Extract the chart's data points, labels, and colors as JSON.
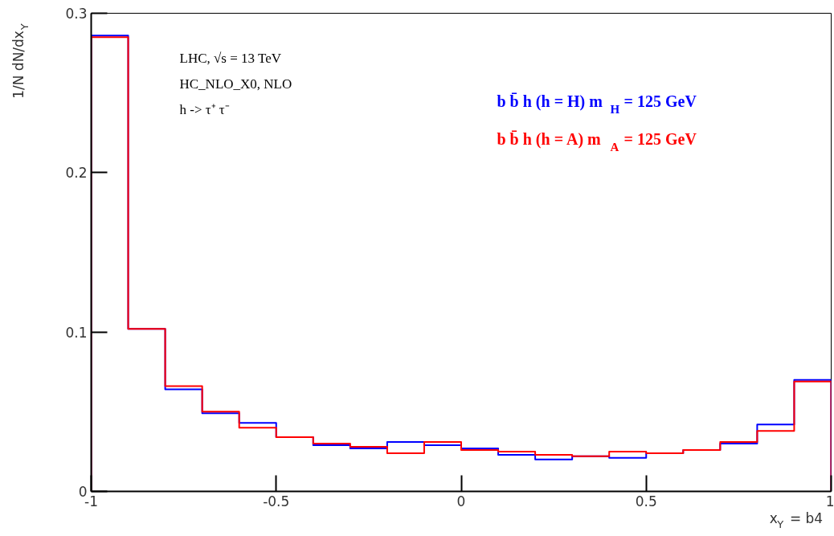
{
  "chart_data": {
    "type": "histogram",
    "bins": [
      -1,
      -0.9,
      -0.8,
      -0.7,
      -0.6,
      -0.5,
      -0.4,
      -0.3,
      -0.2,
      -0.1,
      0,
      0.1,
      0.2,
      0.3,
      0.4,
      0.5,
      0.6,
      0.7,
      0.8,
      0.9,
      1
    ],
    "series": [
      {
        "name": "b b̄ h (h = H) m$_{H}$ = 125 GeV",
        "color": "#0000ff",
        "values": [
          0.286,
          0.102,
          0.064,
          0.049,
          0.043,
          0.034,
          0.029,
          0.027,
          0.031,
          0.029,
          0.027,
          0.023,
          0.02,
          0.022,
          0.021,
          0.024,
          0.026,
          0.03,
          0.042,
          0.07
        ]
      },
      {
        "name": "b b̄ h (h = A) m$_{A}$ = 125 GeV",
        "color": "#ff0000",
        "values": [
          0.285,
          0.102,
          0.066,
          0.05,
          0.04,
          0.034,
          0.03,
          0.028,
          0.024,
          0.031,
          0.026,
          0.025,
          0.023,
          0.022,
          0.025,
          0.024,
          0.026,
          0.031,
          0.038,
          0.069
        ]
      }
    ],
    "xlabel": "x$_{Y}$ = b4",
    "ylabel": "1/N dN/dx$_{Y}$",
    "annotations": [
      "LHC,  √s = 13 TeV",
      "HC_NLO_X0, NLO",
      "h -> τ⁺ τ⁻"
    ],
    "xlim": [
      -1,
      1
    ],
    "ylim": [
      0,
      0.3
    ],
    "xticks": [
      -1,
      -0.5,
      0,
      0.5,
      1
    ],
    "yticks": [
      0,
      0.1,
      0.2,
      0.3
    ],
    "grid": false
  }
}
